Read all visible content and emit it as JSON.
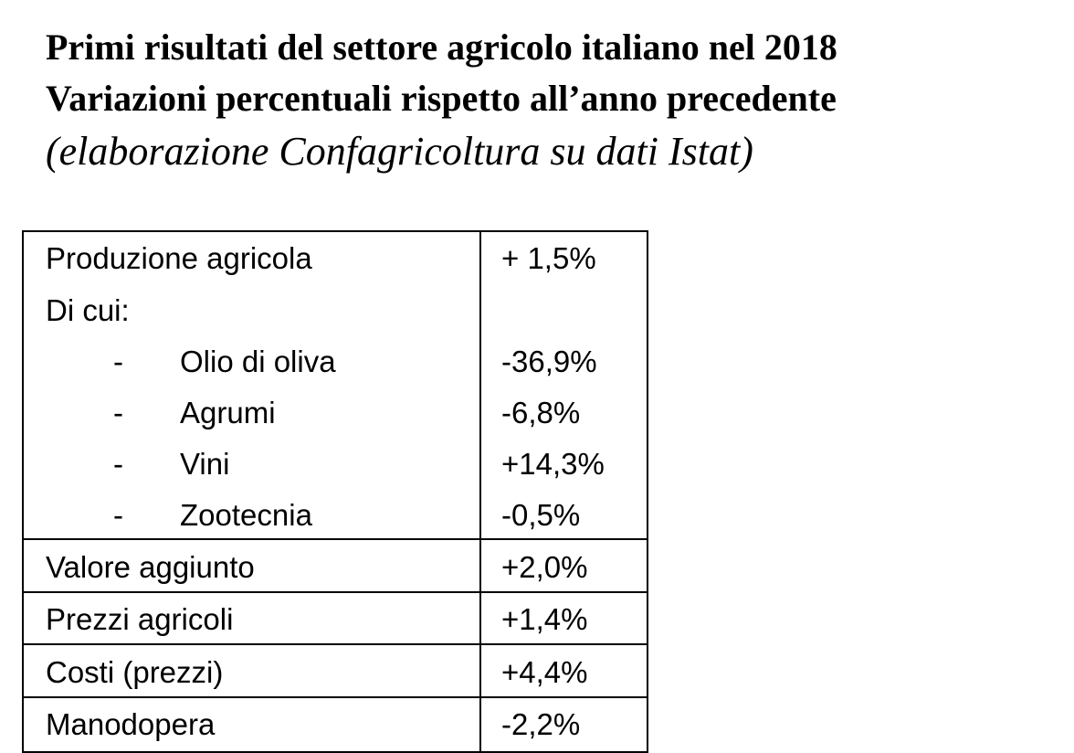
{
  "header": {
    "title_lines": [
      "Primi risultati del settore agricolo italiano nel 2018",
      "Variazioni percentuali rispetto all’anno precedente"
    ],
    "subtitle": "(elaborazione Confagricoltura su dati Istat)"
  },
  "table": {
    "main_row": {
      "label": "Produzione agricola",
      "value": "+ 1,5%",
      "sub_heading": "Di cui:",
      "items": [
        {
          "marker": "-",
          "label": "Olio di oliva",
          "value": "-36,9%"
        },
        {
          "marker": "-",
          "label": "Agrumi",
          "value": "-6,8%"
        },
        {
          "marker": "-",
          "label": "Vini",
          "value": "+14,3%"
        },
        {
          "marker": "-",
          "label": "Zootecnia",
          "value": "-0,5%"
        }
      ]
    },
    "rows": [
      [
        "Valore aggiunto",
        "+2,0%"
      ],
      [
        "Prezzi agricoli",
        "+1,4%"
      ],
      [
        "Costi (prezzi)",
        "+4,4%"
      ],
      [
        "Manodopera",
        "-2,2%"
      ]
    ]
  }
}
